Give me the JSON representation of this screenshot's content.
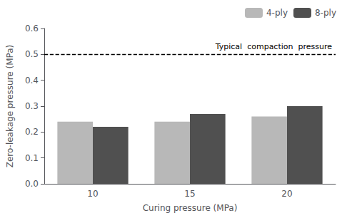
{
  "chart_data": {
    "type": "bar",
    "categories": [
      "10",
      "15",
      "20"
    ],
    "series": [
      {
        "name": "4-ply",
        "color": "#b8b8b8",
        "values": [
          0.24,
          0.24,
          0.26
        ]
      },
      {
        "name": "8-ply",
        "color": "#505050",
        "values": [
          0.22,
          0.27,
          0.3
        ]
      }
    ],
    "xlabel": "Curing pressure (MPa)",
    "ylabel": "Zero-leakage pressure (MPa)",
    "ylim": [
      0,
      0.6
    ],
    "yticks": [
      {
        "value": 0,
        "label": "0.0"
      },
      0.1,
      0.2,
      0.3,
      0.4,
      0.5,
      0.6
    ],
    "reference_line": {
      "y": 0.5,
      "label": "Typical  compaction  pressure",
      "line_style": "dashed",
      "color": "#000000"
    },
    "legend": "upper right",
    "grid": false
  }
}
